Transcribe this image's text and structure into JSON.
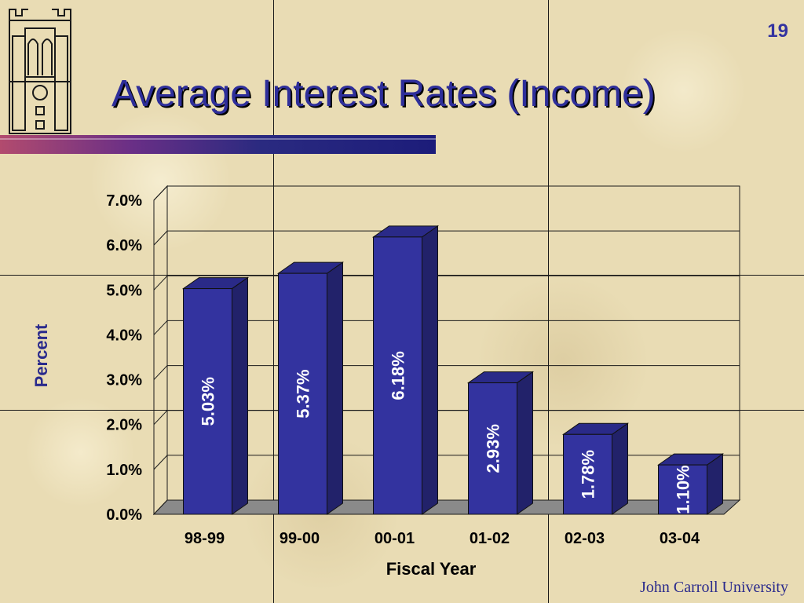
{
  "slide": {
    "number": "19",
    "title": "Average Interest Rates (Income)",
    "footer": "John Carroll University"
  },
  "colors": {
    "title": "#2e2e9a",
    "bar_front": "#33339f",
    "bar_side": "#22226a",
    "bar_top": "#2a2a88",
    "y_axis_title": "#2a2a8c",
    "floor": "#8a8a8a"
  },
  "icons": {
    "logo": "university-tower-icon"
  },
  "chart_data": {
    "type": "bar",
    "title": "",
    "categories": [
      "98-99",
      "99-00",
      "00-01",
      "01-02",
      "02-03",
      "03-04"
    ],
    "series": [
      {
        "values": [
          5.03,
          5.37,
          6.18,
          2.93,
          1.78,
          1.1
        ],
        "labels": [
          "5.03%",
          "5.37%",
          "6.18%",
          "2.93%",
          "1.78%",
          "1.10%"
        ]
      }
    ],
    "xlabel": "Fiscal Year",
    "ylabel": "Percent",
    "ylim": [
      0,
      7
    ],
    "yticks": [
      0,
      1,
      2,
      3,
      4,
      5,
      6,
      7
    ],
    "ytick_labels": [
      "0.0%",
      "1.0%",
      "2.0%",
      "3.0%",
      "4.0%",
      "5.0%",
      "6.0%",
      "7.0%"
    ],
    "grid": true,
    "three_d": true,
    "legend": "none"
  }
}
